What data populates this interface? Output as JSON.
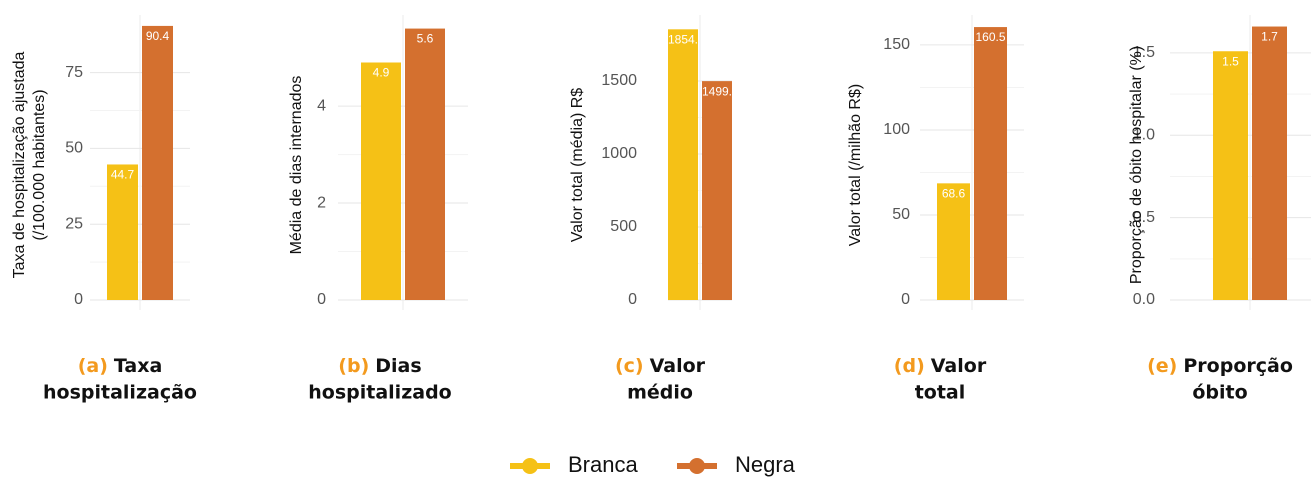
{
  "chart_data": [
    {
      "type": "bar",
      "tag": "(a)",
      "caption": [
        "Taxa",
        "hospitalização"
      ],
      "ylabel": [
        "Taxa de hospitalização ajustada",
        "(/100.000 habitantes)"
      ],
      "values": [
        44.7,
        90.4
      ],
      "value_labels": [
        "44.7",
        "90.4"
      ],
      "ylim": [
        0,
        94
      ],
      "yticks": [
        0,
        25,
        50,
        75
      ],
      "grid": true
    },
    {
      "type": "bar",
      "tag": "(b)",
      "caption": [
        "Dias",
        "hospitalizado"
      ],
      "ylabel": [
        "Média de dias internados"
      ],
      "values": [
        4.9,
        5.6
      ],
      "ylim": [
        0,
        5.88
      ],
      "yticks": [
        0,
        2,
        4
      ],
      "grid": true
    },
    {
      "type": "bar",
      "tag": "(c)",
      "caption": [
        "Valor",
        "médio"
      ],
      "ylabel": [
        "Valor total (média) R$"
      ],
      "values": [
        1854,
        1499
      ],
      "value_labels": [
        "1854.",
        "1499."
      ],
      "ylim": [
        0,
        1952
      ],
      "yticks": [
        0,
        500,
        1000,
        1500
      ],
      "grid": true
    },
    {
      "type": "bar",
      "tag": "(d)",
      "caption": [
        "Valor",
        "total"
      ],
      "ylabel": [
        "Valor total (/milhão R$)"
      ],
      "values": [
        68.6,
        160.5
      ],
      "ylim": [
        0,
        167.6
      ],
      "yticks": [
        0,
        50,
        100,
        150
      ],
      "grid": true
    },
    {
      "type": "bar",
      "tag": "(e)",
      "caption": [
        "Proporção",
        "óbito"
      ],
      "ylabel": [
        "Proporção de óbito hospitalar (%)"
      ],
      "values": [
        1.51,
        1.66
      ],
      "value_labels": [
        "1.5",
        "1.7"
      ],
      "ylim": [
        0,
        1.73
      ],
      "yticks": [
        {
          "value": 0,
          "label": "0.0"
        },
        0.5,
        {
          "value": 1,
          "label": "1.0"
        },
        1.5
      ],
      "grid": true
    }
  ],
  "legend": [
    {
      "name": "Branca",
      "color": "#f5c116"
    },
    {
      "name": "Negra",
      "color": "#d4702f"
    }
  ]
}
